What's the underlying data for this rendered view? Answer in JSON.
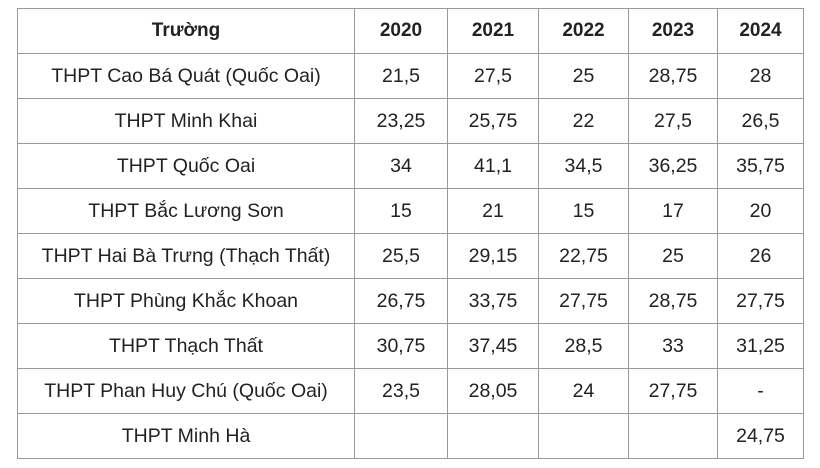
{
  "table": {
    "headers": [
      "Trường",
      "2020",
      "2021",
      "2022",
      "2023",
      "2024"
    ],
    "rows": [
      [
        "THPT Cao Bá Quát (Quốc Oai)",
        "21,5",
        "27,5",
        "25",
        "28,75",
        "28"
      ],
      [
        "THPT Minh Khai",
        "23,25",
        "25,75",
        "22",
        "27,5",
        "26,5"
      ],
      [
        "THPT Quốc Oai",
        "34",
        "41,1",
        "34,5",
        "36,25",
        "35,75"
      ],
      [
        "THPT Bắc Lương Sơn",
        "15",
        "21",
        "15",
        "17",
        "20"
      ],
      [
        "THPT Hai Bà Trưng (Thạch Thất)",
        "25,5",
        "29,15",
        "22,75",
        "25",
        "26"
      ],
      [
        "THPT Phùng Khắc Khoan",
        "26,75",
        "33,75",
        "27,75",
        "28,75",
        "27,75"
      ],
      [
        "THPT Thạch Thất",
        "30,75",
        "37,45",
        "28,5",
        "33",
        "31,25"
      ],
      [
        "THPT Phan Huy Chú (Quốc Oai)",
        "23,5",
        "28,05",
        "24",
        "27,75",
        "-"
      ],
      [
        "THPT Minh Hà",
        "",
        "",
        "",
        "",
        "24,75"
      ]
    ]
  }
}
